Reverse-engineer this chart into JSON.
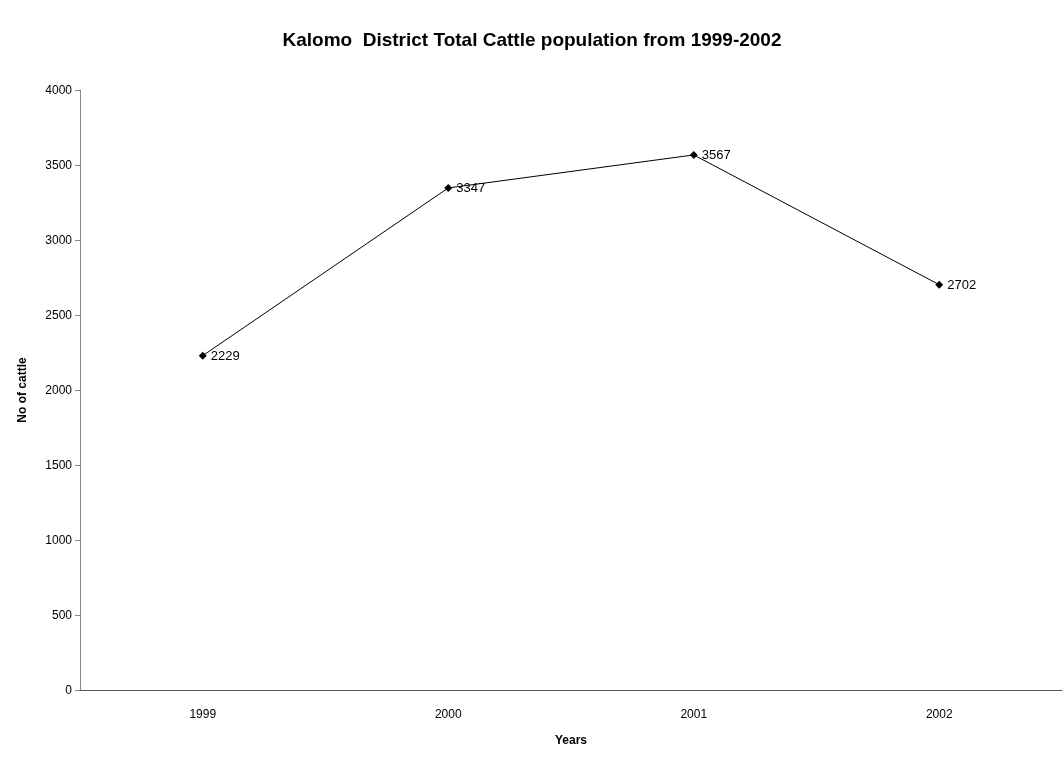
{
  "chart_data": {
    "type": "line",
    "title": "Kalomo  District Total Cattle population from 1999-2002",
    "xlabel": "Years",
    "ylabel": "No of cattle",
    "categories": [
      "1999",
      "2000",
      "2001",
      "2002"
    ],
    "series": [
      {
        "color": "#000000",
        "values": [
          2229,
          3347,
          3567,
          2702
        ]
      }
    ],
    "ylim": [
      0,
      4000
    ],
    "yticks": [
      0,
      500,
      1000,
      1500,
      2000,
      2500,
      3000,
      3500,
      4000
    ],
    "grid": false,
    "marker": "diamond",
    "line_style": "solid",
    "data_labels": true
  }
}
